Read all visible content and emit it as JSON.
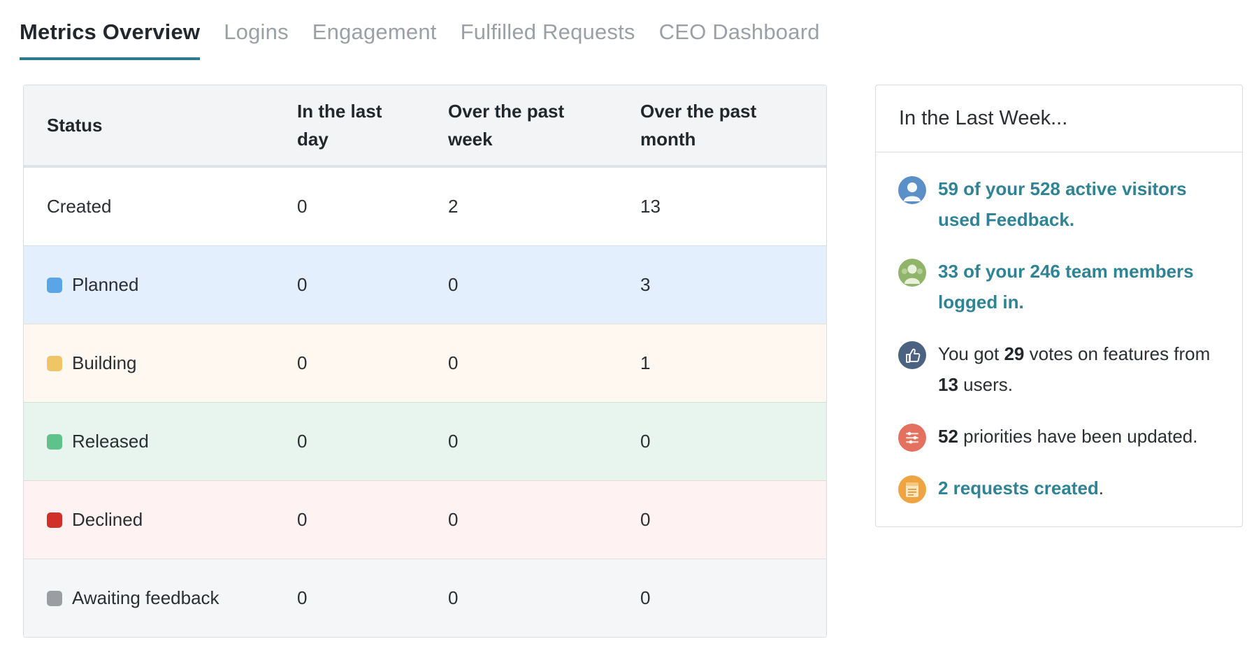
{
  "tabs": [
    {
      "label": "Metrics Overview",
      "active": true
    },
    {
      "label": "Logins",
      "active": false
    },
    {
      "label": "Engagement",
      "active": false
    },
    {
      "label": "Fulfilled Requests",
      "active": false
    },
    {
      "label": "CEO Dashboard",
      "active": false
    }
  ],
  "table": {
    "headers": {
      "status": "Status",
      "day_l1": "In the last",
      "day_l2": "day",
      "week_l1": "Over the past",
      "week_l2": "week",
      "month_l1": "Over the past",
      "month_l2": "month"
    },
    "rows": [
      {
        "status": "Created",
        "color": null,
        "day": "0",
        "week": "2",
        "month": "13"
      },
      {
        "status": "Planned",
        "color": "#5aa5e8",
        "day": "0",
        "week": "0",
        "month": "3"
      },
      {
        "status": "Building",
        "color": "#efc566",
        "day": "0",
        "week": "0",
        "month": "1"
      },
      {
        "status": "Released",
        "color": "#5dc38a",
        "day": "0",
        "week": "0",
        "month": "0"
      },
      {
        "status": "Declined",
        "color": "#d12f2a",
        "day": "0",
        "week": "0",
        "month": "0"
      },
      {
        "status": "Awaiting feedback",
        "color": "#9a9ea3",
        "day": "0",
        "week": "0",
        "month": "0"
      }
    ]
  },
  "panel": {
    "title": "In the Last Week...",
    "visitors": {
      "count": "59",
      "mid": " of your ",
      "total": "528",
      "suffix": " active visitors used Feedback.",
      "icon": "visitor-avatar-icon",
      "color": "#5b8fc7"
    },
    "team": {
      "count": "33",
      "mid": " of your ",
      "total": "246",
      "suffix": " team members logged in.",
      "icon": "team-avatar-icon",
      "color": "#8fb46a"
    },
    "votes": {
      "prefix": "You got ",
      "votes": "29",
      "mid": " votes on features from ",
      "users": "13",
      "suffix": " users.",
      "icon": "thumbs-up-icon",
      "color": "#4b6283"
    },
    "priorities": {
      "count": "52",
      "suffix": " priorities have been updated.",
      "icon": "priorities-icon",
      "color": "#e4705f"
    },
    "requests": {
      "text": "2 requests created",
      "suffix": ".",
      "icon": "requests-icon",
      "color": "#eea541"
    }
  }
}
